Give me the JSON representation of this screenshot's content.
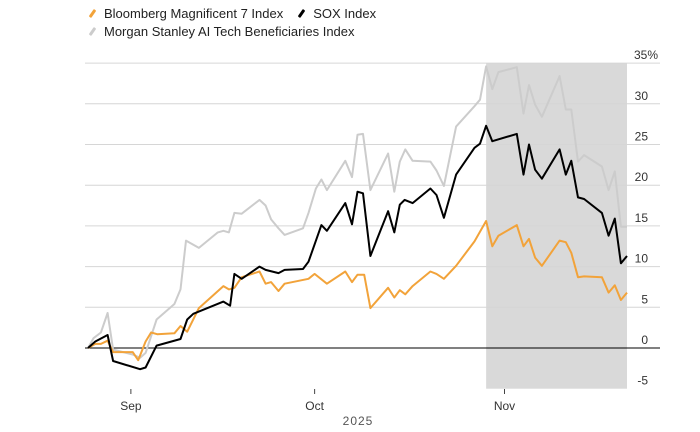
{
  "chart_data": {
    "type": "line",
    "title": "",
    "xlabel": "2025",
    "ylabel": "",
    "x_unit": "days since Aug 25, 2025",
    "xlim": [
      0,
      88
    ],
    "ylim": [
      -5,
      35
    ],
    "y_ticks": [
      {
        "v": 35,
        "label": "35%"
      },
      {
        "v": 30,
        "label": "30"
      },
      {
        "v": 25,
        "label": "25"
      },
      {
        "v": 20,
        "label": "20"
      },
      {
        "v": 15,
        "label": "15"
      },
      {
        "v": 10,
        "label": "10"
      },
      {
        "v": 5,
        "label": "5"
      },
      {
        "v": 0,
        "label": "0"
      },
      {
        "v": -5,
        "label": "-5"
      }
    ],
    "x_ticks": [
      {
        "v": 7,
        "label": "Sep"
      },
      {
        "v": 37,
        "label": "Oct"
      },
      {
        "v": 68,
        "label": "Nov"
      }
    ],
    "shaded_region": [
      65,
      88
    ],
    "grid": true,
    "legend_position": "top-left",
    "series": [
      {
        "name": "Bloomberg Magnificent 7 Index",
        "color": "#f2a33a",
        "points": [
          [
            0,
            0
          ],
          [
            1.2,
            0.5
          ],
          [
            2.1,
            0.5
          ],
          [
            3.2,
            0.9
          ],
          [
            4.1,
            -0.5
          ],
          [
            7.3,
            -0.5
          ],
          [
            8.2,
            -1.5
          ],
          [
            9.4,
            0.8
          ],
          [
            10.3,
            1.9
          ],
          [
            11.3,
            1.7
          ],
          [
            14.1,
            1.8
          ],
          [
            15.1,
            2.7
          ],
          [
            16.2,
            2.0
          ],
          [
            18.1,
            4.9
          ],
          [
            22.1,
            7.6
          ],
          [
            23,
            7.2
          ],
          [
            23.9,
            7.4
          ],
          [
            25.1,
            8.7
          ],
          [
            28,
            9.4
          ],
          [
            29,
            7.9
          ],
          [
            29.9,
            8.1
          ],
          [
            31.1,
            7.0
          ],
          [
            32.1,
            7.9
          ],
          [
            36,
            8.5
          ],
          [
            37,
            9.1
          ],
          [
            39,
            7.9
          ],
          [
            42,
            9.4
          ],
          [
            43.1,
            8.1
          ],
          [
            44,
            9.0
          ],
          [
            45.1,
            9.0
          ],
          [
            46.1,
            4.9
          ],
          [
            49,
            7.4
          ],
          [
            50,
            6.2
          ],
          [
            50.9,
            7.1
          ],
          [
            51.8,
            6.6
          ],
          [
            53,
            7.6
          ],
          [
            55.9,
            9.4
          ],
          [
            56.9,
            9.1
          ],
          [
            58.1,
            8.5
          ],
          [
            60.1,
            10.1
          ],
          [
            63.1,
            13.1
          ],
          [
            65,
            15.6
          ],
          [
            66,
            12.5
          ],
          [
            67,
            13.8
          ],
          [
            70,
            15.1
          ],
          [
            71.1,
            12.5
          ],
          [
            72,
            13.4
          ],
          [
            73,
            11.1
          ],
          [
            74.1,
            10.1
          ],
          [
            77,
            13.2
          ],
          [
            78,
            13.0
          ],
          [
            78.9,
            11.7
          ],
          [
            80,
            8.7
          ],
          [
            81,
            8.8
          ],
          [
            83.9,
            8.7
          ],
          [
            85,
            6.8
          ],
          [
            86,
            7.7
          ],
          [
            87,
            5.9
          ],
          [
            88,
            6.8
          ]
        ]
      },
      {
        "name": "SOX Index",
        "color": "#000000",
        "points": [
          [
            0,
            0
          ],
          [
            1.2,
            0.8
          ],
          [
            3.2,
            1.6
          ],
          [
            4.1,
            -1.6
          ],
          [
            8.5,
            -2.6
          ],
          [
            9.4,
            -2.4
          ],
          [
            11.2,
            0.3
          ],
          [
            15.1,
            1.1
          ],
          [
            16.2,
            3.5
          ],
          [
            17.2,
            4.2
          ],
          [
            22.1,
            5.7
          ],
          [
            23.2,
            5.2
          ],
          [
            23.9,
            9.1
          ],
          [
            25.1,
            8.5
          ],
          [
            28,
            10
          ],
          [
            29,
            9.6
          ],
          [
            31.1,
            9.2
          ],
          [
            32.1,
            9.6
          ],
          [
            35.1,
            9.7
          ],
          [
            36,
            10.6
          ],
          [
            38.1,
            15.1
          ],
          [
            39,
            14.4
          ],
          [
            42,
            17.8
          ],
          [
            43.1,
            15.2
          ],
          [
            44,
            19.2
          ],
          [
            44.9,
            19.0
          ],
          [
            46.1,
            11.3
          ],
          [
            49,
            16.8
          ],
          [
            50,
            14.2
          ],
          [
            50.9,
            17.6
          ],
          [
            51.7,
            18.2
          ],
          [
            53,
            17.8
          ],
          [
            55.9,
            19.6
          ],
          [
            56.9,
            18.8
          ],
          [
            58.1,
            16.0
          ],
          [
            60.1,
            21.3
          ],
          [
            63.1,
            24.6
          ],
          [
            64,
            25.1
          ],
          [
            65,
            27.3
          ],
          [
            66,
            25.4
          ],
          [
            70,
            26.3
          ],
          [
            71.1,
            21.3
          ],
          [
            72,
            25.0
          ],
          [
            73,
            21.9
          ],
          [
            74.1,
            20.8
          ],
          [
            77,
            24.4
          ],
          [
            78,
            21.3
          ],
          [
            78.9,
            23.0
          ],
          [
            80,
            18.5
          ],
          [
            81,
            18.3
          ],
          [
            83.9,
            16.6
          ],
          [
            85,
            13.8
          ],
          [
            86,
            15.9
          ],
          [
            87,
            10.4
          ],
          [
            88,
            11.3
          ]
        ]
      },
      {
        "name": "Morgan Stanley AI Tech Beneficiaries Index",
        "color": "#cccccc",
        "points": [
          [
            0,
            0
          ],
          [
            0.9,
            1.2
          ],
          [
            2.1,
            1.9
          ],
          [
            3.2,
            4.3
          ],
          [
            4.1,
            -0.2
          ],
          [
            7.3,
            -0.8
          ],
          [
            8.5,
            -1.2
          ],
          [
            9.4,
            -0.6
          ],
          [
            11.2,
            3.5
          ],
          [
            14.1,
            5.4
          ],
          [
            15.1,
            7.2
          ],
          [
            16,
            13.2
          ],
          [
            18.1,
            12.3
          ],
          [
            21.2,
            14.2
          ],
          [
            22.1,
            14.4
          ],
          [
            23,
            14.2
          ],
          [
            23.9,
            16.6
          ],
          [
            25.1,
            16.5
          ],
          [
            28,
            18.2
          ],
          [
            29,
            17.5
          ],
          [
            29.9,
            15.8
          ],
          [
            31.1,
            14.7
          ],
          [
            32.1,
            13.9
          ],
          [
            35.1,
            14.7
          ],
          [
            36,
            16.6
          ],
          [
            37.2,
            19.6
          ],
          [
            38.1,
            20.7
          ],
          [
            39,
            19.4
          ],
          [
            42,
            23.0
          ],
          [
            43.1,
            21.0
          ],
          [
            44,
            26.2
          ],
          [
            44.9,
            26.3
          ],
          [
            46.1,
            19.4
          ],
          [
            49,
            23.9
          ],
          [
            50,
            19.2
          ],
          [
            50.9,
            22.9
          ],
          [
            51.8,
            24.4
          ],
          [
            53,
            23.0
          ],
          [
            55.9,
            22.9
          ],
          [
            56.9,
            21.8
          ],
          [
            58.1,
            19.9
          ],
          [
            60.1,
            27.2
          ],
          [
            63.1,
            29.7
          ],
          [
            64,
            30.5
          ],
          [
            65,
            34.6
          ],
          [
            66,
            31.8
          ],
          [
            67,
            33.9
          ],
          [
            70,
            34.5
          ],
          [
            71.1,
            28.8
          ],
          [
            72,
            32.3
          ],
          [
            73,
            29.9
          ],
          [
            74.1,
            28.4
          ],
          [
            77,
            33.4
          ],
          [
            78,
            29.3
          ],
          [
            78.9,
            29.3
          ],
          [
            80,
            22.9
          ],
          [
            81,
            23.7
          ],
          [
            83.9,
            22.3
          ],
          [
            85,
            19.4
          ],
          [
            86,
            21.7
          ],
          [
            87,
            14.9
          ],
          [
            88,
            14.9
          ]
        ]
      }
    ]
  }
}
